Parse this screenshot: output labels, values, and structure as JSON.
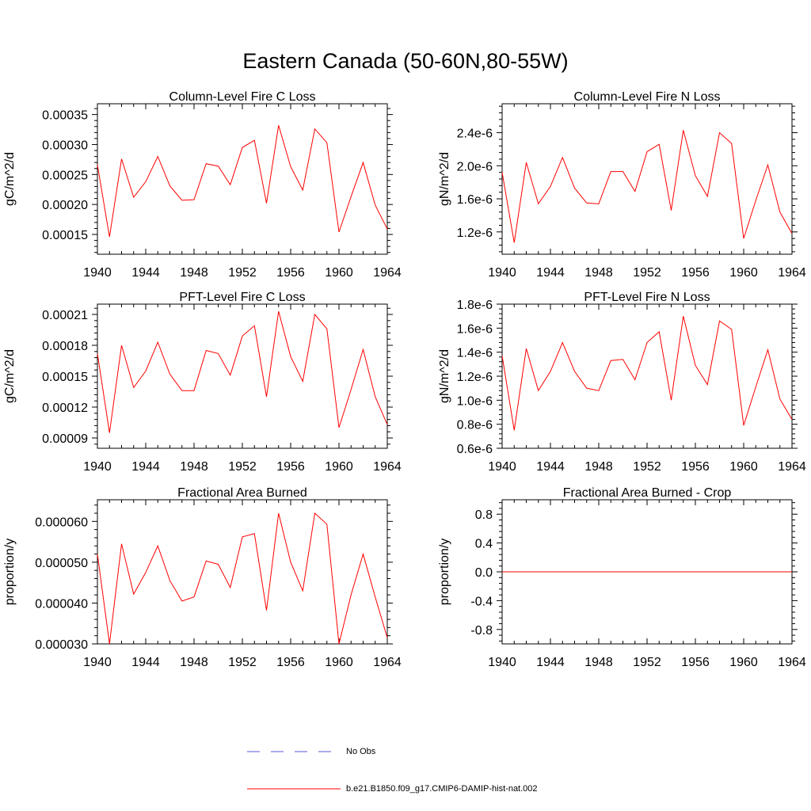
{
  "figure": {
    "title": "Eastern Canada (50-60N,80-55W)"
  },
  "legend": [
    {
      "label": "No Obs",
      "color": "#5a5ad0",
      "style": "dashed"
    },
    {
      "label": "b.e21.B1850.f09_g17.CMIP6-DAMIP-hist-nat.002",
      "color": "#ff0000",
      "style": "solid"
    }
  ],
  "chart_data": [
    {
      "type": "line",
      "title": "Column-Level Fire C Loss",
      "xlabel": "",
      "ylabel": "gC/m^2/d",
      "xlim": [
        1940,
        1964
      ],
      "ylim": [
        0.000117,
        0.000368
      ],
      "xticks": [
        "1940",
        "1944",
        "1948",
        "1952",
        "1956",
        "1960",
        "1964"
      ],
      "yticks": [
        "0.00015",
        "0.00020",
        "0.00025",
        "0.00030",
        "0.00035"
      ],
      "ytick_values": [
        0.00015,
        0.0002,
        0.00025,
        0.0003,
        0.00035
      ],
      "x": [
        1940,
        1941,
        1942,
        1943,
        1944,
        1945,
        1946,
        1947,
        1948,
        1949,
        1950,
        1951,
        1952,
        1953,
        1954,
        1955,
        1956,
        1957,
        1958,
        1959,
        1960,
        1961,
        1962,
        1963,
        1964
      ],
      "series": [
        {
          "name": "b.e21.B1850.f09_g17.CMIP6-DAMIP-hist-nat.002",
          "color": "#ff0000",
          "values": [
            0.000266,
            0.000146,
            0.000276,
            0.000212,
            0.000238,
            0.00028,
            0.000231,
            0.000207,
            0.000208,
            0.000268,
            0.000264,
            0.000233,
            0.000295,
            0.000307,
            0.000202,
            0.000332,
            0.000263,
            0.000224,
            0.000326,
            0.000303,
            0.000154,
            0.000213,
            0.00027,
            0.000199,
            0.000159
          ]
        }
      ]
    },
    {
      "type": "line",
      "title": "Column-Level Fire N Loss",
      "xlabel": "",
      "ylabel": "gN/m^2/d",
      "xlim": [
        1940,
        1964
      ],
      "ylim": [
        9.3e-07,
        2.75e-06
      ],
      "xticks": [
        "1940",
        "1944",
        "1948",
        "1952",
        "1956",
        "1960",
        "1964"
      ],
      "yticks": [
        "1.2e-6",
        "1.6e-6",
        "2.0e-6",
        "2.4e-6"
      ],
      "ytick_values": [
        1.2e-06,
        1.6e-06,
        2e-06,
        2.4e-06
      ],
      "x": [
        1940,
        1941,
        1942,
        1943,
        1944,
        1945,
        1946,
        1947,
        1948,
        1949,
        1950,
        1951,
        1952,
        1953,
        1954,
        1955,
        1956,
        1957,
        1958,
        1959,
        1960,
        1961,
        1962,
        1963,
        1964
      ],
      "series": [
        {
          "name": "b.e21.B1850.f09_g17.CMIP6-DAMIP-hist-nat.002",
          "color": "#ff0000",
          "values": [
            1.92e-06,
            1.07e-06,
            2.04e-06,
            1.54e-06,
            1.75e-06,
            2.1e-06,
            1.73e-06,
            1.55e-06,
            1.54e-06,
            1.93e-06,
            1.93e-06,
            1.69e-06,
            2.17e-06,
            2.26e-06,
            1.46e-06,
            2.43e-06,
            1.88e-06,
            1.63e-06,
            2.4e-06,
            2.27e-06,
            1.12e-06,
            1.58e-06,
            2.01e-06,
            1.44e-06,
            1.18e-06
          ]
        }
      ]
    },
    {
      "type": "line",
      "title": "PFT-Level Fire C Loss",
      "xlabel": "",
      "ylabel": "gC/m^2/d",
      "xlim": [
        1940,
        1964
      ],
      "ylim": [
        8e-05,
        0.00022
      ],
      "xticks": [
        "1940",
        "1944",
        "1948",
        "1952",
        "1956",
        "1960",
        "1964"
      ],
      "yticks": [
        "0.00009",
        "0.00012",
        "0.00015",
        "0.00018",
        "0.00021"
      ],
      "ytick_values": [
        9e-05,
        0.00012,
        0.00015,
        0.00018,
        0.00021
      ],
      "x": [
        1940,
        1941,
        1942,
        1943,
        1944,
        1945,
        1946,
        1947,
        1948,
        1949,
        1950,
        1951,
        1952,
        1953,
        1954,
        1955,
        1956,
        1957,
        1958,
        1959,
        1960,
        1961,
        1962,
        1963,
        1964
      ],
      "series": [
        {
          "name": "b.e21.B1850.f09_g17.CMIP6-DAMIP-hist-nat.002",
          "color": "#ff0000",
          "values": [
            0.000172,
            9.5e-05,
            0.00018,
            0.000139,
            0.000155,
            0.000183,
            0.000152,
            0.000136,
            0.000136,
            0.000175,
            0.000172,
            0.000151,
            0.000189,
            0.000199,
            0.00013,
            0.000213,
            0.000169,
            0.000145,
            0.00021,
            0.000196,
            0.0001,
            0.000137,
            0.000176,
            0.00013,
            0.000103
          ]
        }
      ]
    },
    {
      "type": "line",
      "title": "PFT-Level Fire N Loss",
      "xlabel": "",
      "ylabel": "gN/m^2/d",
      "xlim": [
        1940,
        1964
      ],
      "ylim": [
        6e-07,
        1.8e-06
      ],
      "xticks": [
        "1940",
        "1944",
        "1948",
        "1952",
        "1956",
        "1960",
        "1964"
      ],
      "yticks": [
        "0.6e-6",
        "0.8e-6",
        "1.0e-6",
        "1.2e-6",
        "1.4e-6",
        "1.6e-6",
        "1.8e-6"
      ],
      "ytick_values": [
        6e-07,
        8e-07,
        1e-06,
        1.2e-06,
        1.4e-06,
        1.6e-06,
        1.8e-06
      ],
      "x": [
        1940,
        1941,
        1942,
        1943,
        1944,
        1945,
        1946,
        1947,
        1948,
        1949,
        1950,
        1951,
        1952,
        1953,
        1954,
        1955,
        1956,
        1957,
        1958,
        1959,
        1960,
        1961,
        1962,
        1963,
        1964
      ],
      "series": [
        {
          "name": "b.e21.B1850.f09_g17.CMIP6-DAMIP-hist-nat.002",
          "color": "#ff0000",
          "values": [
            1.37e-06,
            7.5e-07,
            1.43e-06,
            1.08e-06,
            1.24e-06,
            1.48e-06,
            1.24e-06,
            1.1e-06,
            1.08e-06,
            1.33e-06,
            1.34e-06,
            1.17e-06,
            1.48e-06,
            1.57e-06,
            1e-06,
            1.7e-06,
            1.29e-06,
            1.13e-06,
            1.66e-06,
            1.59e-06,
            7.9e-07,
            1.11e-06,
            1.42e-06,
            1.01e-06,
            8.4e-07
          ]
        }
      ]
    },
    {
      "type": "line",
      "title": "Fractional Area Burned",
      "xlabel": "",
      "ylabel": "proportion/y",
      "xlim": [
        1940,
        1964
      ],
      "ylim": [
        3e-05,
        6.53e-05
      ],
      "xticks": [
        "1940",
        "1944",
        "1948",
        "1952",
        "1956",
        "1960",
        "1964"
      ],
      "yticks": [
        "0.000030",
        "0.000040",
        "0.000050",
        "0.000060"
      ],
      "ytick_values": [
        3e-05,
        4e-05,
        5e-05,
        6e-05
      ],
      "x": [
        1940,
        1941,
        1942,
        1943,
        1944,
        1945,
        1946,
        1947,
        1948,
        1949,
        1950,
        1951,
        1952,
        1953,
        1954,
        1955,
        1956,
        1957,
        1958,
        1959,
        1960,
        1961,
        1962,
        1963,
        1964
      ],
      "series": [
        {
          "name": "b.e21.B1850.f09_g17.CMIP6-DAMIP-hist-nat.002",
          "color": "#ff0000",
          "values": [
            5.2e-05,
            3e-05,
            5.45e-05,
            4.22e-05,
            4.75e-05,
            5.4e-05,
            4.55e-05,
            4.05e-05,
            4.15e-05,
            5.03e-05,
            4.95e-05,
            4.38e-05,
            5.62e-05,
            5.7e-05,
            3.82e-05,
            6.2e-05,
            5e-05,
            4.3e-05,
            6.2e-05,
            5.93e-05,
            3e-05,
            4.2e-05,
            5.2e-05,
            4.15e-05,
            3.15e-05
          ]
        }
      ]
    },
    {
      "type": "line",
      "title": "Fractional Area Burned - Crop",
      "xlabel": "",
      "ylabel": "proportion/y",
      "xlim": [
        1940,
        1964
      ],
      "ylim": [
        -1.0,
        1.0
      ],
      "xticks": [
        "1940",
        "1944",
        "1948",
        "1952",
        "1956",
        "1960",
        "1964"
      ],
      "yticks": [
        "-0.8",
        "-0.4",
        "0.0",
        "0.4",
        "0.8"
      ],
      "ytick_values": [
        -0.8,
        -0.4,
        0.0,
        0.4,
        0.8
      ],
      "x": [
        1940,
        1941,
        1942,
        1943,
        1944,
        1945,
        1946,
        1947,
        1948,
        1949,
        1950,
        1951,
        1952,
        1953,
        1954,
        1955,
        1956,
        1957,
        1958,
        1959,
        1960,
        1961,
        1962,
        1963,
        1964
      ],
      "series": [
        {
          "name": "b.e21.B1850.f09_g17.CMIP6-DAMIP-hist-nat.002",
          "color": "#ff0000",
          "values": [
            0,
            0,
            0,
            0,
            0,
            0,
            0,
            0,
            0,
            0,
            0,
            0,
            0,
            0,
            0,
            0,
            0,
            0,
            0,
            0,
            0,
            0,
            0,
            0,
            0
          ]
        }
      ]
    }
  ]
}
